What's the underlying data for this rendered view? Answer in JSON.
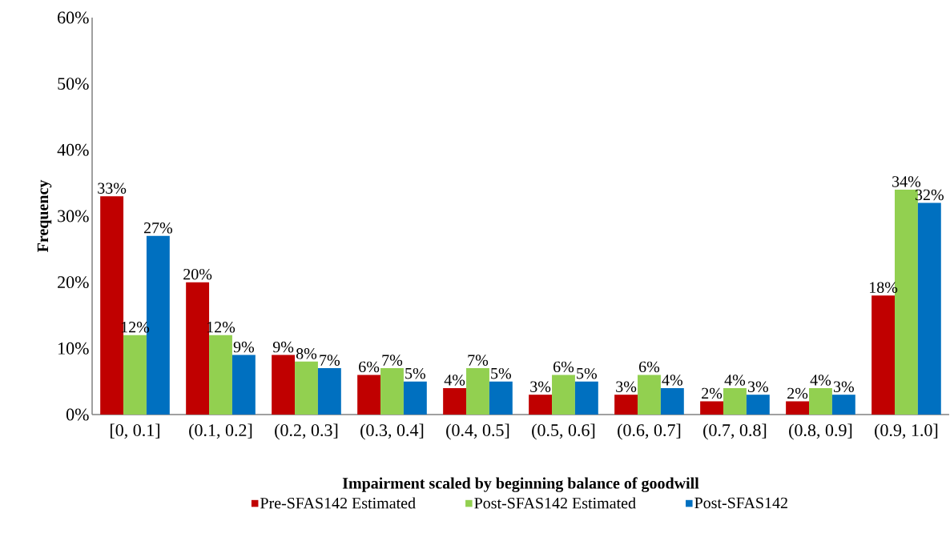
{
  "chart_data": {
    "type": "bar",
    "xlabel": "Impairment scaled by beginning balance of goodwill",
    "ylabel": "Frequency",
    "categories": [
      "[0, 0.1]",
      "(0.1, 0.2]",
      "(0.2, 0.3]",
      "(0.3, 0.4]",
      "(0.4, 0.5]",
      "(0.5, 0.6]",
      "(0.6, 0.7]",
      "(0.7, 0.8]",
      "(0.8, 0.9]",
      "(0.9, 1.0]"
    ],
    "series": [
      {
        "name": "Pre-SFAS142 Estimated",
        "color": "#c00000",
        "values": [
          33,
          20,
          9,
          6,
          4,
          3,
          3,
          2,
          2,
          18
        ],
        "value_labels": [
          "33%",
          "20%",
          "9%",
          "6%",
          "4%",
          "3%",
          "3%",
          "2%",
          "2%",
          "18%"
        ]
      },
      {
        "name": "Post-SFAS142 Estimated",
        "color": "#92d050",
        "values": [
          12,
          12,
          8,
          7,
          7,
          6,
          6,
          4,
          4,
          34
        ],
        "value_labels": [
          "12%",
          "12%",
          "8%",
          "7%",
          "7%",
          "6%",
          "6%",
          "4%",
          "4%",
          "34%"
        ]
      },
      {
        "name": "Post-SFAS142",
        "color": "#0070c0",
        "values": [
          27,
          9,
          7,
          5,
          5,
          5,
          4,
          3,
          3,
          32
        ],
        "value_labels": [
          "27%",
          "9%",
          "7%",
          "5%",
          "5%",
          "5%",
          "4%",
          "3%",
          "3%",
          "32%"
        ]
      }
    ],
    "ylim": [
      0,
      60
    ],
    "yticks": [
      {
        "value": 0,
        "label": "0%"
      },
      {
        "value": 10,
        "label": "10%"
      },
      {
        "value": 20,
        "label": "20%"
      },
      {
        "value": 30,
        "label": "30%"
      },
      {
        "value": 40,
        "label": "40%"
      },
      {
        "value": 50,
        "label": "50%"
      },
      {
        "value": 60,
        "label": "60%"
      }
    ],
    "grid": false,
    "legend": "bottom"
  }
}
